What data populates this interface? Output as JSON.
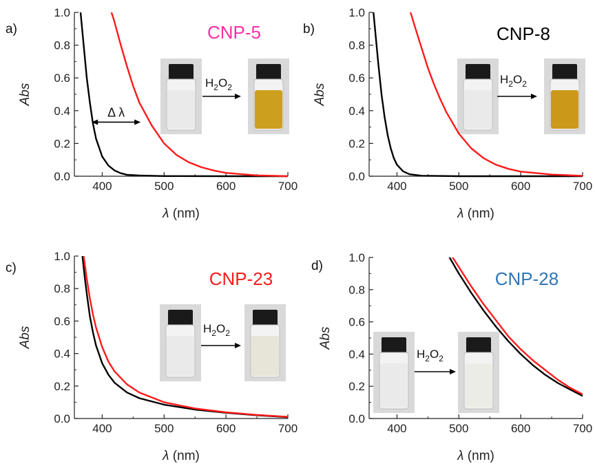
{
  "colors": {
    "before": "#000000",
    "after": "#ff1a1a"
  },
  "reagent_label": {
    "base": "H",
    "sub1": "2",
    "mid": "O",
    "sub2": "2"
  },
  "chart_data": [
    {
      "type": "line",
      "panel_label": "a)",
      "title": "CNP-5",
      "title_color": "#ff2da8",
      "xlabel_symbol": "λ",
      "xlabel_unit": " (nm)",
      "ylabel": "Abs",
      "xlim": [
        355,
        700
      ],
      "ylim": [
        0,
        1.0
      ],
      "xticks": [
        400,
        500,
        600,
        700
      ],
      "yticks": [
        0.0,
        0.2,
        0.4,
        0.6,
        0.8,
        1.0
      ],
      "ytick_labels": [
        "0.0",
        "0.2",
        "0.4",
        "0.6",
        "0.8",
        "1.0"
      ],
      "annotation": "Δ λ",
      "vial_after_color": "#c99a12",
      "series": [
        {
          "color": "#000000",
          "x": [
            365,
            370,
            375,
            380,
            385,
            390,
            400,
            410,
            420,
            430,
            440,
            460,
            500,
            600,
            700
          ],
          "y": [
            1.0,
            0.8,
            0.6,
            0.45,
            0.32,
            0.23,
            0.12,
            0.065,
            0.035,
            0.018,
            0.009,
            0.004,
            0.001,
            0.0,
            0.0
          ]
        },
        {
          "color": "#ff1a1a",
          "x": [
            415,
            420,
            430,
            440,
            450,
            460,
            480,
            500,
            520,
            540,
            560,
            580,
            600,
            650,
            700
          ],
          "y": [
            1.0,
            0.94,
            0.8,
            0.67,
            0.55,
            0.45,
            0.31,
            0.2,
            0.13,
            0.085,
            0.055,
            0.035,
            0.02,
            0.005,
            0.0
          ]
        }
      ]
    },
    {
      "type": "line",
      "panel_label": "b)",
      "title": "CNP-8",
      "title_color": "#000000",
      "xlabel_symbol": "λ",
      "xlabel_unit": " (nm)",
      "ylabel": "Abs",
      "xlim": [
        355,
        700
      ],
      "ylim": [
        0,
        1.0
      ],
      "xticks": [
        400,
        500,
        600,
        700
      ],
      "yticks": [
        0.0,
        0.2,
        0.4,
        0.6,
        0.8,
        1.0
      ],
      "ytick_labels": [
        "0.0",
        "0.2",
        "0.4",
        "0.6",
        "0.8",
        "1.0"
      ],
      "vial_after_color": "#c9920e",
      "series": [
        {
          "color": "#000000",
          "x": [
            362,
            365,
            370,
            375,
            380,
            385,
            390,
            395,
            400,
            410,
            420,
            440,
            500,
            600,
            700
          ],
          "y": [
            1.0,
            0.88,
            0.68,
            0.5,
            0.36,
            0.25,
            0.17,
            0.11,
            0.07,
            0.03,
            0.012,
            0.003,
            0.0,
            0.0,
            0.0
          ]
        },
        {
          "color": "#ff1a1a",
          "x": [
            422,
            430,
            440,
            450,
            460,
            470,
            480,
            500,
            520,
            540,
            560,
            580,
            600,
            650,
            700
          ],
          "y": [
            1.0,
            0.9,
            0.78,
            0.66,
            0.56,
            0.47,
            0.39,
            0.26,
            0.17,
            0.11,
            0.07,
            0.045,
            0.028,
            0.01,
            0.002
          ]
        }
      ]
    },
    {
      "type": "line",
      "panel_label": "c)",
      "title": "CNP-23",
      "title_color": "#ff1a1a",
      "xlabel_symbol": "λ",
      "xlabel_unit": " (nm)",
      "ylabel": "Abs",
      "xlim": [
        355,
        700
      ],
      "ylim": [
        0,
        1.0
      ],
      "xticks": [
        400,
        500,
        600,
        700
      ],
      "yticks": [
        0.0,
        0.2,
        0.4,
        0.6,
        0.8,
        1.0
      ],
      "ytick_labels": [
        "0.0",
        "0.2",
        "0.4",
        "0.6",
        "0.8",
        "1.0"
      ],
      "vial_after_color": "#e6e4d6",
      "series": [
        {
          "color": "#000000",
          "x": [
            368,
            372,
            376,
            380,
            385,
            390,
            400,
            410,
            420,
            440,
            460,
            500,
            550,
            600,
            650,
            700
          ],
          "y": [
            1.0,
            0.86,
            0.74,
            0.63,
            0.53,
            0.45,
            0.34,
            0.27,
            0.22,
            0.16,
            0.125,
            0.085,
            0.055,
            0.035,
            0.02,
            0.008
          ]
        },
        {
          "color": "#ff1a1a",
          "x": [
            370,
            375,
            380,
            385,
            390,
            400,
            410,
            420,
            440,
            460,
            500,
            550,
            600,
            650,
            700
          ],
          "y": [
            1.0,
            0.86,
            0.74,
            0.64,
            0.56,
            0.44,
            0.35,
            0.29,
            0.21,
            0.16,
            0.1,
            0.062,
            0.038,
            0.022,
            0.01
          ]
        }
      ]
    },
    {
      "type": "line",
      "panel_label": "d)",
      "title": "CNP-28",
      "title_color": "#2e75b6",
      "xlabel_symbol": "λ",
      "xlabel_unit": " (nm)",
      "ylabel": "Abs",
      "xlim": [
        355,
        700
      ],
      "ylim": [
        0,
        1.0
      ],
      "xticks": [
        400,
        500,
        600,
        700
      ],
      "yticks": [
        0.0,
        0.2,
        0.4,
        0.6,
        0.8,
        1.0
      ],
      "ytick_labels": [
        "0.0",
        "0.2",
        "0.4",
        "0.6",
        "0.8",
        "1.0"
      ],
      "vial_after_color": "#ebebe6",
      "series": [
        {
          "color": "#000000",
          "x": [
            485,
            500,
            520,
            540,
            560,
            580,
            600,
            620,
            640,
            660,
            680,
            700
          ],
          "y": [
            1.0,
            0.9,
            0.78,
            0.67,
            0.57,
            0.48,
            0.4,
            0.33,
            0.27,
            0.22,
            0.18,
            0.14
          ]
        },
        {
          "color": "#ff1a1a",
          "x": [
            490,
            500,
            520,
            540,
            560,
            580,
            600,
            620,
            640,
            660,
            680,
            700
          ],
          "y": [
            1.0,
            0.94,
            0.82,
            0.71,
            0.61,
            0.51,
            0.43,
            0.36,
            0.3,
            0.24,
            0.19,
            0.15
          ]
        }
      ]
    }
  ]
}
